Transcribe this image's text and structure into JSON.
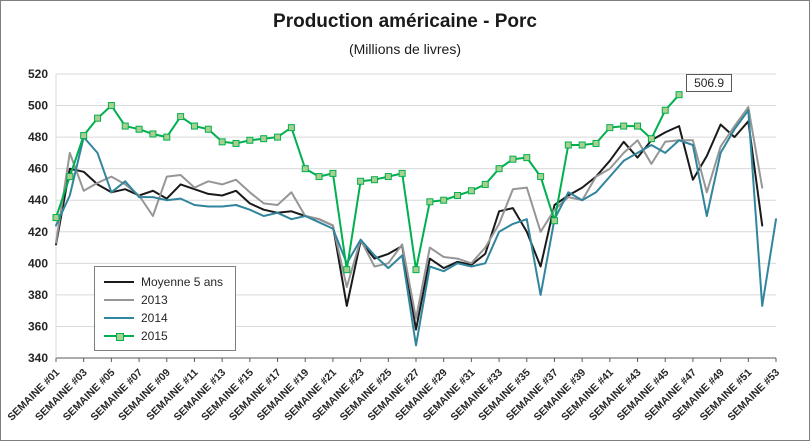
{
  "chart_data": {
    "type": "line",
    "title": "Production américaine - Porc",
    "subtitle": "(Millions de livres)",
    "ylim": [
      340,
      520
    ],
    "yticks": [
      340,
      360,
      380,
      400,
      420,
      440,
      460,
      480,
      500,
      520
    ],
    "x_count": 53,
    "xtick_labels": [
      "SEMAINE #01",
      "SEMAINE #03",
      "SEMAINE #05",
      "SEMAINE #07",
      "SEMAINE #09",
      "SEMAINE #11",
      "SEMAINE #13",
      "SEMAINE #15",
      "SEMAINE #17",
      "SEMAINE #19",
      "SEMAINE #21",
      "SEMAINE #23",
      "SEMAINE #25",
      "SEMAINE #27",
      "SEMAINE #29",
      "SEMAINE #31",
      "SEMAINE #33",
      "SEMAINE #35",
      "SEMAINE #37",
      "SEMAINE #39",
      "SEMAINE #41",
      "SEMAINE #43",
      "SEMAINE #45",
      "SEMAINE #47",
      "SEMAINE #49",
      "SEMAINE #51",
      "SEMAINE #53"
    ],
    "grid_color": "#d9d9d9",
    "axis_color": "#595959",
    "legend_position": "inside-left",
    "annotation": {
      "text": "506.9",
      "week": 46,
      "value": 506.9
    },
    "series": [
      {
        "name": "Moyenne 5 ans",
        "color": "#1a1a1a",
        "values": [
          412,
          460,
          458,
          450,
          445,
          447,
          443,
          446,
          441,
          450,
          447,
          444,
          443,
          446,
          438,
          434,
          432,
          433,
          430,
          428,
          424,
          373,
          414,
          403,
          406,
          411,
          358,
          403,
          397,
          401,
          399,
          406,
          433,
          435,
          420,
          398,
          437,
          443,
          448,
          455,
          465,
          477,
          467,
          478,
          483,
          487,
          453,
          468,
          488,
          480,
          490,
          424,
          null
        ]
      },
      {
        "name": "2013",
        "color": "#969696",
        "values": [
          413,
          470,
          446,
          451,
          455,
          450,
          443,
          430,
          455,
          456,
          448,
          452,
          450,
          453,
          445,
          438,
          437,
          445,
          430,
          428,
          424,
          385,
          415,
          398,
          400,
          412,
          365,
          410,
          404,
          403,
          400,
          410,
          425,
          447,
          448,
          420,
          434,
          442,
          440,
          455,
          460,
          470,
          478,
          463,
          477,
          478,
          478,
          445,
          474,
          487,
          499,
          448,
          null
        ]
      },
      {
        "name": "2014",
        "color": "#31859c",
        "values": [
          424,
          443,
          480,
          470,
          445,
          452,
          442,
          442,
          440,
          441,
          437,
          436,
          436,
          437,
          434,
          430,
          432,
          428,
          430,
          426,
          422,
          400,
          415,
          405,
          397,
          405,
          348,
          398,
          395,
          400,
          398,
          400,
          420,
          425,
          428,
          380,
          428,
          445,
          440,
          445,
          455,
          465,
          470,
          475,
          470,
          478,
          475,
          430,
          470,
          485,
          497,
          373,
          428
        ]
      },
      {
        "name": "2015",
        "color": "#00b050",
        "marker": {
          "fill": "#a9d08e",
          "stroke": "#00b050"
        },
        "values": [
          429,
          455,
          481,
          492,
          500,
          487,
          485,
          482,
          480,
          493,
          487,
          485,
          477,
          476,
          478,
          479,
          480,
          486,
          460,
          455,
          457,
          396,
          452,
          453,
          455,
          457,
          396,
          439,
          440,
          443,
          446,
          450,
          460,
          466,
          467,
          455,
          427,
          475,
          475,
          476,
          486,
          487,
          487,
          479,
          497,
          506.9
        ]
      }
    ]
  }
}
